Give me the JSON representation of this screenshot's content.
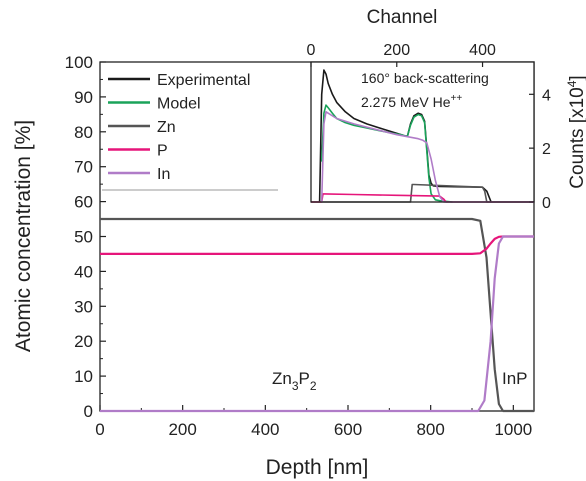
{
  "chart_data": [
    {
      "type": "line",
      "xlabel": "Depth [nm]",
      "ylabel": "Atomic concentration [%]",
      "xlim": [
        0,
        1050
      ],
      "ylim": [
        0,
        100
      ],
      "xticks": [
        "0",
        "200",
        "400",
        "600",
        "800",
        "1000"
      ],
      "xtick_values": [
        0,
        200,
        400,
        600,
        800,
        1000
      ],
      "yticks": [
        "0",
        "10",
        "20",
        "30",
        "40",
        "50",
        "60",
        "70",
        "80",
        "90",
        "100"
      ],
      "ytick_values": [
        0,
        10,
        20,
        30,
        40,
        50,
        60,
        70,
        80,
        90,
        100
      ],
      "legend": {
        "placement": "top-left",
        "items": [
          {
            "name": "Experimental",
            "color": "#1a1a1a"
          },
          {
            "name": "Model",
            "color": "#1aa35a"
          },
          {
            "name": "Zn",
            "color": "#555555"
          },
          {
            "name": "P",
            "color": "#e6157a"
          },
          {
            "name": "In",
            "color": "#b07cc8"
          }
        ]
      },
      "series": [
        {
          "name": "Zn",
          "color": "#555555",
          "x": [
            0,
            900,
            920,
            935,
            945,
            955,
            965,
            975,
            1050
          ],
          "y": [
            55,
            55,
            54.5,
            44,
            28,
            12,
            2,
            0,
            0
          ]
        },
        {
          "name": "P",
          "color": "#e6157a",
          "x": [
            0,
            900,
            920,
            935,
            945,
            955,
            965,
            975,
            1050
          ],
          "y": [
            45,
            45,
            45.2,
            46.5,
            48,
            49.3,
            49.9,
            50,
            50
          ]
        },
        {
          "name": "In",
          "color": "#b07cc8",
          "x": [
            0,
            915,
            930,
            945,
            955,
            965,
            975,
            1050
          ],
          "y": [
            0,
            0,
            3,
            20,
            38,
            48,
            50,
            50
          ]
        }
      ],
      "annotations": [
        {
          "text_main": "Zn",
          "sub1": "3",
          "mid": "P",
          "sub2": "2"
        },
        {
          "text": "InP"
        }
      ]
    },
    {
      "type": "line",
      "xlabel": "Channel",
      "ylabel_main": "Counts [x10",
      "ylabel_sup": "4",
      "ylabel_end": "]",
      "xlim": [
        0,
        520
      ],
      "ylim": [
        0,
        5.2
      ],
      "xticks": [
        "0",
        "200",
        "400"
      ],
      "xtick_values": [
        0,
        200,
        400
      ],
      "yticks": [
        "0",
        "2",
        "4"
      ],
      "ytick_values": [
        0,
        2,
        4
      ],
      "annotation_line1": "160° back-scattering",
      "annotation_line2_main": "2.275 MeV He",
      "annotation_line2_sup": "++",
      "series": [
        {
          "name": "Experimental",
          "color": "#1a1a1a",
          "x": [
            20,
            25,
            30,
            35,
            40,
            50,
            60,
            80,
            100,
            130,
            160,
            190,
            210,
            220,
            225,
            232,
            240,
            250,
            258,
            265,
            270,
            275,
            280,
            285,
            300,
            400,
            410,
            420
          ],
          "y": [
            0,
            4.0,
            4.9,
            4.75,
            4.4,
            4.0,
            3.7,
            3.35,
            3.1,
            2.9,
            2.75,
            2.6,
            2.5,
            2.45,
            2.45,
            2.9,
            3.2,
            3.3,
            3.25,
            3.0,
            2.0,
            1.0,
            0.7,
            0.6,
            0.58,
            0.55,
            0.4,
            0.0
          ]
        },
        {
          "name": "Model",
          "color": "#1aa35a",
          "x": [
            25,
            30,
            35,
            40,
            50,
            60,
            80,
            100,
            130,
            160,
            190,
            210,
            220,
            225,
            232,
            240,
            250,
            258,
            265,
            270,
            275,
            280,
            290,
            300,
            330
          ],
          "y": [
            1.5,
            3.3,
            3.6,
            3.5,
            3.3,
            3.1,
            2.95,
            2.85,
            2.75,
            2.65,
            2.55,
            2.5,
            2.45,
            2.45,
            2.85,
            3.15,
            3.25,
            3.2,
            2.95,
            1.9,
            0.9,
            0.3,
            0.08,
            0.05,
            0.0
          ]
        },
        {
          "name": "Zn",
          "color": "#555555",
          "x": [
            0,
            232,
            236,
            240,
            400,
            405,
            410,
            520
          ],
          "y": [
            0,
            0,
            0.65,
            0.65,
            0.55,
            0.4,
            0.0,
            0.0
          ]
        },
        {
          "name": "P",
          "color": "#e6157a",
          "x": [
            0,
            25,
            28,
            32,
            100,
            200,
            300,
            310,
            315,
            520
          ],
          "y": [
            0,
            0,
            0.3,
            0.3,
            0.28,
            0.25,
            0.22,
            0.1,
            0.0,
            0.0
          ]
        },
        {
          "name": "In",
          "color": "#b07cc8",
          "x": [
            25,
            30,
            35,
            40,
            60,
            100,
            150,
            200,
            250,
            260,
            270,
            280,
            290,
            300,
            310,
            520
          ],
          "y": [
            0,
            2.9,
            3.35,
            3.3,
            3.1,
            2.9,
            2.7,
            2.5,
            2.35,
            2.3,
            2.2,
            1.6,
            0.8,
            0.2,
            0.0,
            0.0
          ]
        }
      ]
    }
  ]
}
